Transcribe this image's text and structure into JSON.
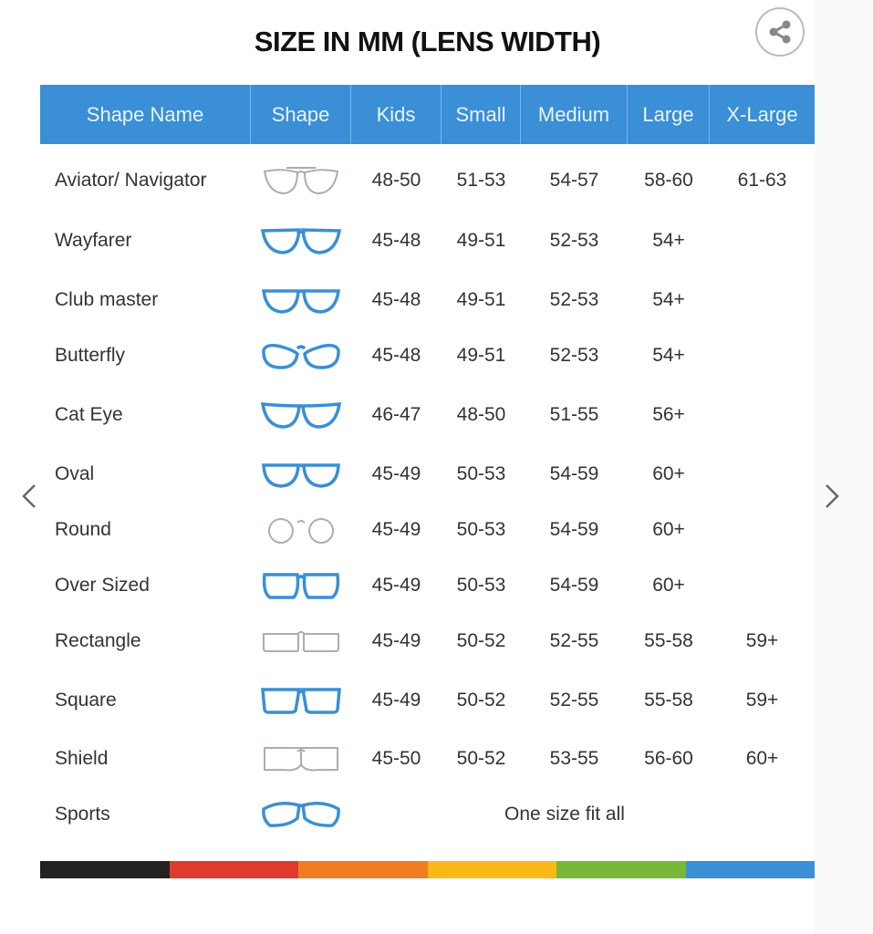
{
  "title": "SIZE IN MM (LENS WIDTH)",
  "share_icon": "share-icon",
  "nav": {
    "prev_icon": "chevron-left-icon",
    "next_icon": "chevron-right-icon"
  },
  "colors": {
    "header": "#3a8fd6",
    "frame_blue": "#3a8fd6",
    "frame_gray": "#a9aeb2"
  },
  "columns": [
    "Shape Name",
    "Shape",
    "Kids",
    "Small",
    "Medium",
    "Large",
    "X-Large"
  ],
  "rows": [
    {
      "name": "Aviator/ Navigator",
      "icon": "aviator-glasses-icon",
      "frame": "gray",
      "sizes": [
        "48-50",
        "51-53",
        "54-57",
        "58-60",
        "61-63"
      ]
    },
    {
      "name": "Wayfarer",
      "icon": "wayfarer-glasses-icon",
      "frame": "blue",
      "sizes": [
        "45-48",
        "49-51",
        "52-53",
        "54+",
        ""
      ]
    },
    {
      "name": "Club master",
      "icon": "clubmaster-glasses-icon",
      "frame": "mixed",
      "sizes": [
        "45-48",
        "49-51",
        "52-53",
        "54+",
        ""
      ]
    },
    {
      "name": "Butterfly",
      "icon": "butterfly-glasses-icon",
      "frame": "blue",
      "sizes": [
        "45-48",
        "49-51",
        "52-53",
        "54+",
        ""
      ]
    },
    {
      "name": "Cat Eye",
      "icon": "cat-eye-glasses-icon",
      "frame": "blue",
      "sizes": [
        "46-47",
        "48-50",
        "51-55",
        "56+",
        ""
      ]
    },
    {
      "name": "Oval",
      "icon": "oval-glasses-icon",
      "frame": "blue",
      "sizes": [
        "45-49",
        "50-53",
        "54-59",
        "60+",
        ""
      ]
    },
    {
      "name": "Round",
      "icon": "round-glasses-icon",
      "frame": "gray",
      "sizes": [
        "45-49",
        "50-53",
        "54-59",
        "60+",
        ""
      ]
    },
    {
      "name": "Over Sized",
      "icon": "oversized-glasses-icon",
      "frame": "blue",
      "sizes": [
        "45-49",
        "50-53",
        "54-59",
        "60+",
        ""
      ]
    },
    {
      "name": "Rectangle",
      "icon": "rectangle-glasses-icon",
      "frame": "gray",
      "sizes": [
        "45-49",
        "50-52",
        "52-55",
        "55-58",
        "59+"
      ]
    },
    {
      "name": "Square",
      "icon": "square-glasses-icon",
      "frame": "blue",
      "sizes": [
        "45-49",
        "50-52",
        "52-55",
        "55-58",
        "59+"
      ]
    },
    {
      "name": "Shield",
      "icon": "shield-glasses-icon",
      "frame": "gray",
      "sizes": [
        "45-50",
        "50-52",
        "53-55",
        "56-60",
        "60+"
      ]
    },
    {
      "name": "Sports",
      "icon": "sports-glasses-icon",
      "frame": "blue",
      "span_text": "One size fit all"
    }
  ],
  "color_bar": [
    "#222222",
    "#e03a2f",
    "#f07d22",
    "#fbb817",
    "#77b83a",
    "#3a8fd6"
  ]
}
